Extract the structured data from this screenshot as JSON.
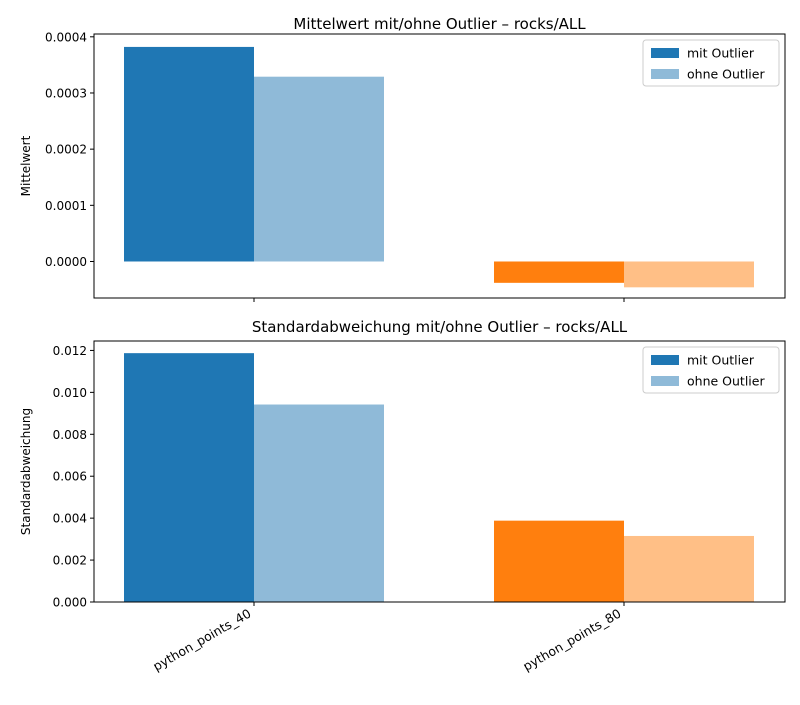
{
  "chart_data": [
    {
      "type": "bar",
      "title": "Mittelwert mit/ohne Outlier – rocks/ALL",
      "xlabel": "",
      "ylabel": "Mittelwert",
      "categories": [
        "python_points_40",
        "python_points_80"
      ],
      "show_category_labels": false,
      "ylim": [
        -6.5e-05,
        0.000405
      ],
      "yticks": [
        0.0,
        0.0001,
        0.0002,
        0.0003,
        0.0004
      ],
      "ytick_labels": [
        "0.0000",
        "0.0001",
        "0.0002",
        "0.0003",
        "0.0004"
      ],
      "series": [
        {
          "name": "mit Outlier",
          "values": [
            0.000382,
            -3.8e-05
          ],
          "colors": [
            "#1f77b4",
            "#ff7f0e"
          ]
        },
        {
          "name": "ohne Outlier",
          "values": [
            0.000329,
            -4.6e-05
          ],
          "colors": [
            "#8fbad8",
            "#ffbf86"
          ]
        }
      ],
      "legend": {
        "position": "top-right",
        "colors": [
          "#1f77b4",
          "#8fbad8"
        ]
      },
      "grid": false
    },
    {
      "type": "bar",
      "title": "Standardabweichung mit/ohne Outlier – rocks/ALL",
      "xlabel": "",
      "ylabel": "Standardabweichung",
      "categories": [
        "python_points_40",
        "python_points_80"
      ],
      "show_category_labels": true,
      "ylim": [
        0,
        0.01245
      ],
      "yticks": [
        0.0,
        0.002,
        0.004,
        0.006,
        0.008,
        0.01,
        0.012
      ],
      "ytick_labels": [
        "0.000",
        "0.002",
        "0.004",
        "0.006",
        "0.008",
        "0.010",
        "0.012"
      ],
      "series": [
        {
          "name": "mit Outlier",
          "values": [
            0.01187,
            0.00388
          ],
          "colors": [
            "#1f77b4",
            "#ff7f0e"
          ]
        },
        {
          "name": "ohne Outlier",
          "values": [
            0.00942,
            0.00315
          ],
          "colors": [
            "#8fbad8",
            "#ffbf86"
          ]
        }
      ],
      "legend": {
        "position": "top-right",
        "colors": [
          "#1f77b4",
          "#8fbad8"
        ]
      },
      "grid": false
    }
  ]
}
